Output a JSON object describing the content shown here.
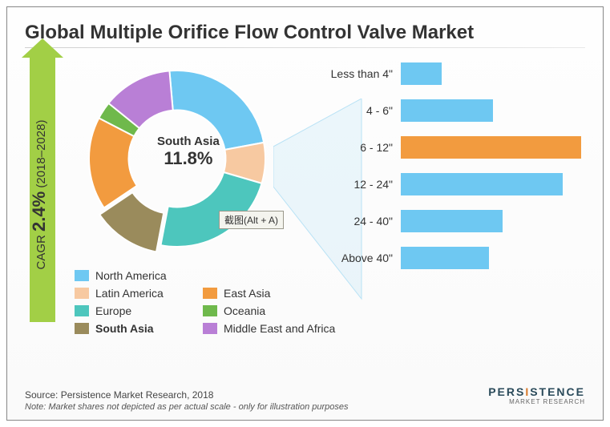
{
  "title": "Global Multiple Orifice Flow Control Valve Market",
  "cagr": {
    "label_prefix": "CAGR ",
    "value": "2.4%",
    "period": "(2018–2028)"
  },
  "donut": {
    "highlight_label": "South Asia",
    "highlight_value": "11.8%",
    "slices": [
      {
        "name": "North America",
        "value": 22,
        "color": "#6ec8f2"
      },
      {
        "name": "Latin America",
        "value": 7,
        "color": "#f7c9a1"
      },
      {
        "name": "Europe",
        "value": 22,
        "color": "#4dc6bd"
      },
      {
        "name": "South Asia",
        "value": 11.8,
        "color": "#9a8b5c",
        "highlight": true
      },
      {
        "name": "East Asia",
        "value": 16,
        "color": "#f29b3f"
      },
      {
        "name": "Oceania",
        "value": 3,
        "color": "#6fb94c"
      },
      {
        "name": "Middle East and Africa",
        "value": 12,
        "color": "#b97fd6"
      }
    ],
    "hole_ratio": 0.55,
    "rotation_deg": -95
  },
  "legend_order": [
    [
      "North America",
      ""
    ],
    [
      "Latin America",
      "East Asia"
    ],
    [
      "Europe",
      "Oceania"
    ],
    [
      "South Asia",
      "Middle East and Africa"
    ]
  ],
  "bars": {
    "max": 100,
    "default_color": "#6ec8f2",
    "rows": [
      {
        "label": "Less than 4\"",
        "value": 22,
        "color": "#6ec8f2"
      },
      {
        "label": "4 - 6\"",
        "value": 50,
        "color": "#6ec8f2"
      },
      {
        "label": "6 - 12\"",
        "value": 98,
        "color": "#f29b3f"
      },
      {
        "label": "12 - 24\"",
        "value": 88,
        "color": "#6ec8f2"
      },
      {
        "label": "24 - 40\"",
        "value": 55,
        "color": "#6ec8f2"
      },
      {
        "label": "Above 40\"",
        "value": 48,
        "color": "#6ec8f2"
      }
    ]
  },
  "tooltip": "截图(Alt + A)",
  "source": "Source: Persistence Market Research, 2018",
  "note": "Note:  Market shares not depicted as per actual scale - only for illustration purposes",
  "brand": {
    "line1a": "PERS",
    "line1b": "I",
    "line1c": "STENCE",
    "line2": "MARKET RESEARCH"
  },
  "style": {
    "title_fontsize": 24,
    "body_fontsize": 14,
    "bg": "#ffffff"
  }
}
